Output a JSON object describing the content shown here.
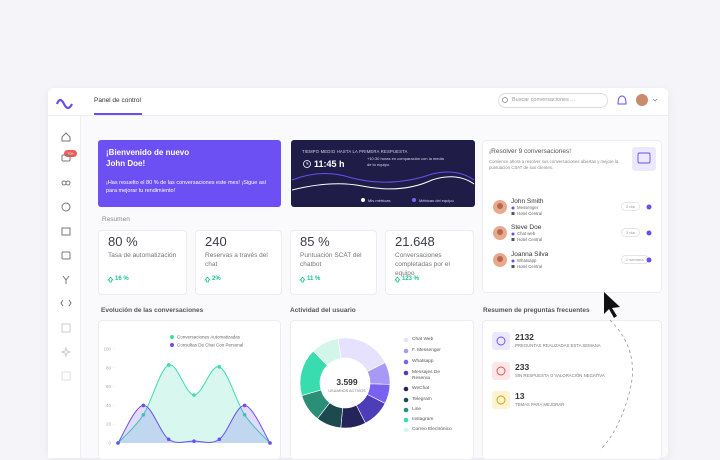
{
  "header": {
    "title": "Panel de control",
    "search": "Buscar conversaciones ...",
    "badge": "10+"
  },
  "welcome": {
    "title": "¡Bienvenido de nuevo",
    "name": "John Doe!",
    "message": "¡Has resuelto el 80 % de las conversaciones este mes! ¡Sigue así para mejorar tu rendimiento!"
  },
  "response_time": {
    "title": "TIEMPO MEDIO HASTA LA PRIMERA RESPUESTA",
    "value": "11:45 h",
    "note": "+10:30 horas en comparación con la media de tu equipo.",
    "legend": [
      "Mis métricas",
      "Métricas del equipo"
    ]
  },
  "summary": {
    "title": "Resumen",
    "kpis": [
      {
        "value": "80 %",
        "label": "Tasa de automatización",
        "change": "16 %"
      },
      {
        "value": "240",
        "label": "Reservas a través del chat",
        "change": "2%"
      },
      {
        "value": "85 %",
        "label": "Puntuación SCAT del chatbot",
        "change": "11 %"
      },
      {
        "value": "21.648",
        "label": "Conversaciones completadas por el equipo",
        "change": "123 %"
      }
    ]
  },
  "pending": {
    "title": "¡Resolver 9 conversaciones!",
    "text": "Comience ahora a resolver sus conversaciones abiertas y mejore la puntuación CSAT de sus clientes.",
    "contacts": [
      {
        "name": "John Smith",
        "channel": "Messenger",
        "hotel": "Hotel Central",
        "time": "2 día"
      },
      {
        "name": "Steve Doe",
        "channel": "Chat web",
        "hotel": "Hotel Central",
        "time": "2 día"
      },
      {
        "name": "Joanna Silva",
        "channel": "Whatsapp",
        "hotel": "Hotel Central",
        "time": "2 semana"
      }
    ]
  },
  "faq": {
    "title": "Resumen de preguntas frecuentes",
    "items": [
      {
        "value": "2132",
        "label": "PREGUNTAS REALIZADAS ESTA SEMANA"
      },
      {
        "value": "233",
        "label": "SIN RESPUESTA O VALORACIÓN NEGATIVA"
      },
      {
        "value": "13",
        "label": "TEMAS PARA MEJORAR"
      }
    ]
  },
  "chart_data": [
    {
      "type": "area",
      "title": "Evolución de las conversaciones",
      "categories": [
        null,
        null,
        null,
        null,
        null,
        null,
        null
      ],
      "series": [
        {
          "name": "Conversaciones Automatizadas",
          "color": "#3ddbb0",
          "values": [
            0,
            30,
            83,
            51,
            81,
            30,
            0
          ]
        },
        {
          "name": "Consultas De Chat Con Personal",
          "color": "#6a4ff0",
          "values": [
            0,
            40,
            4,
            2,
            4,
            40,
            0
          ]
        }
      ],
      "ylim": [
        0,
        100
      ],
      "yticks": [
        0,
        20,
        40,
        60,
        80,
        100
      ]
    },
    {
      "type": "donut",
      "title": "Actividad del usuario",
      "total": "3.599",
      "total_label": "USUARIOS ACTIVOS",
      "categories": [
        "Chat Web",
        "F. Messenger",
        "Whatsapp",
        "Mensajes De Reserva",
        "WeChat",
        "Telegram",
        "Line",
        "Instagram",
        "Correo Electrónico"
      ],
      "values": [
        20,
        8,
        7,
        10,
        9,
        9,
        10,
        17,
        10
      ],
      "colors": [
        "#e6e1fd",
        "#a899f6",
        "#7b61f0",
        "#4d3db8",
        "#25245a",
        "#1d4a4f",
        "#2b8f78",
        "#39dcae",
        "#d3f5ea"
      ]
    }
  ]
}
